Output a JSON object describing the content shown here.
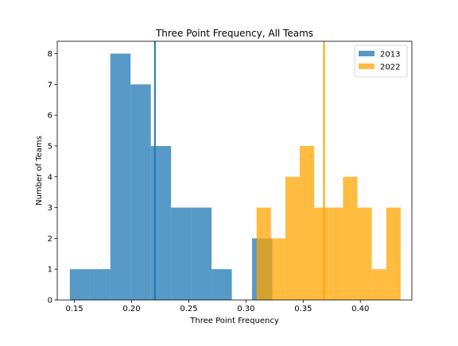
{
  "chart_data": {
    "type": "histogram",
    "title": "Three Point Frequency, All Teams",
    "xlabel": "Three Point Frequency",
    "ylabel": "Number of Teams",
    "xlim": [
      0.135,
      0.445
    ],
    "ylim": [
      0,
      8.4
    ],
    "xticks": [
      "0.15",
      "0.20",
      "0.25",
      "0.30",
      "0.35",
      "0.40"
    ],
    "yticks": [
      "0",
      "1",
      "2",
      "3",
      "4",
      "5",
      "6",
      "7",
      "8"
    ],
    "grid": false,
    "legend": {
      "position": "upper-right"
    },
    "series": [
      {
        "name": "2013",
        "color": "#1f77b4",
        "alpha": 0.75,
        "mean": 0.2204,
        "bins": [
          {
            "x0": 0.146,
            "x1": 0.1637,
            "count": 1
          },
          {
            "x0": 0.1637,
            "x1": 0.1814,
            "count": 1
          },
          {
            "x0": 0.1814,
            "x1": 0.1991,
            "count": 8
          },
          {
            "x0": 0.1991,
            "x1": 0.2168,
            "count": 7
          },
          {
            "x0": 0.2168,
            "x1": 0.2345,
            "count": 5
          },
          {
            "x0": 0.2345,
            "x1": 0.2522,
            "count": 3
          },
          {
            "x0": 0.2522,
            "x1": 0.2699,
            "count": 3
          },
          {
            "x0": 0.2699,
            "x1": 0.2876,
            "count": 1
          },
          {
            "x0": 0.2876,
            "x1": 0.3053,
            "count": 0
          },
          {
            "x0": 0.3053,
            "x1": 0.323,
            "count": 2
          }
        ]
      },
      {
        "name": "2022",
        "color": "#ffa500",
        "alpha": 0.75,
        "mean": 0.3682,
        "bins": [
          {
            "x0": 0.3092,
            "x1": 0.3218,
            "count": 3
          },
          {
            "x0": 0.3218,
            "x1": 0.3344,
            "count": 2
          },
          {
            "x0": 0.3344,
            "x1": 0.347,
            "count": 4
          },
          {
            "x0": 0.347,
            "x1": 0.3596,
            "count": 5
          },
          {
            "x0": 0.3596,
            "x1": 0.3722,
            "count": 3
          },
          {
            "x0": 0.3722,
            "x1": 0.3848,
            "count": 3
          },
          {
            "x0": 0.3848,
            "x1": 0.3974,
            "count": 4
          },
          {
            "x0": 0.3974,
            "x1": 0.41,
            "count": 3
          },
          {
            "x0": 0.41,
            "x1": 0.4226,
            "count": 1
          },
          {
            "x0": 0.4226,
            "x1": 0.4352,
            "count": 3
          }
        ]
      }
    ]
  }
}
